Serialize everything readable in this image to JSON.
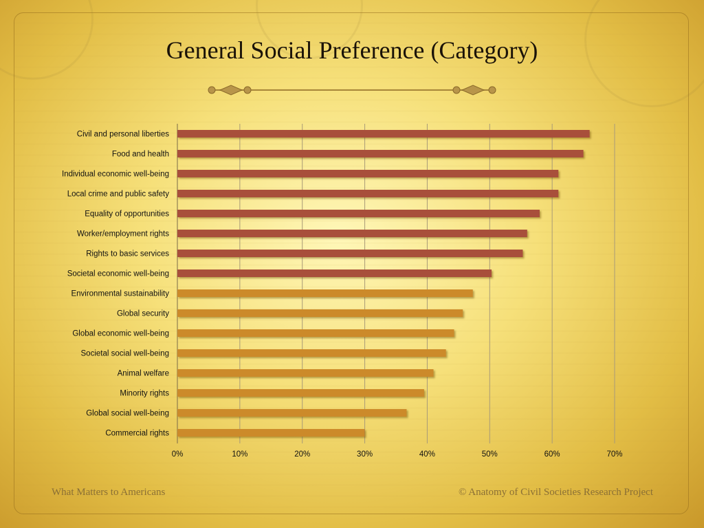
{
  "slide": {
    "title": "General Social Preference (Category)",
    "footer_left": "What Matters to Americans",
    "footer_right": "© Anatomy of Civil Societies Research Project"
  },
  "colors": {
    "bar_top_group": "#a8503a",
    "bar_bottom_group": "#cc8a2a",
    "gridline": "#a89a78",
    "ornament": "#a8873a"
  },
  "chart_data": {
    "type": "bar",
    "orientation": "horizontal",
    "categories": [
      "Civil and personal liberties",
      "Food and health",
      "Individual economic well-being",
      "Local crime and public safety",
      "Equality of opportunities",
      "Worker/employment rights",
      "Rights to basic services",
      "Societal economic well-being",
      "Environmental sustainability",
      "Global security",
      "Global economic well-being",
      "Societal social well-being",
      "Animal welfare",
      "Minority rights",
      "Global social well-being",
      "Commercial rights"
    ],
    "values": [
      0.66,
      0.65,
      0.61,
      0.61,
      0.58,
      0.56,
      0.553,
      0.503,
      0.473,
      0.457,
      0.443,
      0.43,
      0.41,
      0.395,
      0.367,
      0.3
    ],
    "highlight_top_n": 8,
    "xlim": [
      0,
      0.7
    ],
    "xticks": [
      "0%",
      "10%",
      "20%",
      "30%",
      "40%",
      "50%",
      "60%",
      "70%"
    ],
    "grid": true,
    "title": "",
    "xlabel": "",
    "ylabel": ""
  }
}
